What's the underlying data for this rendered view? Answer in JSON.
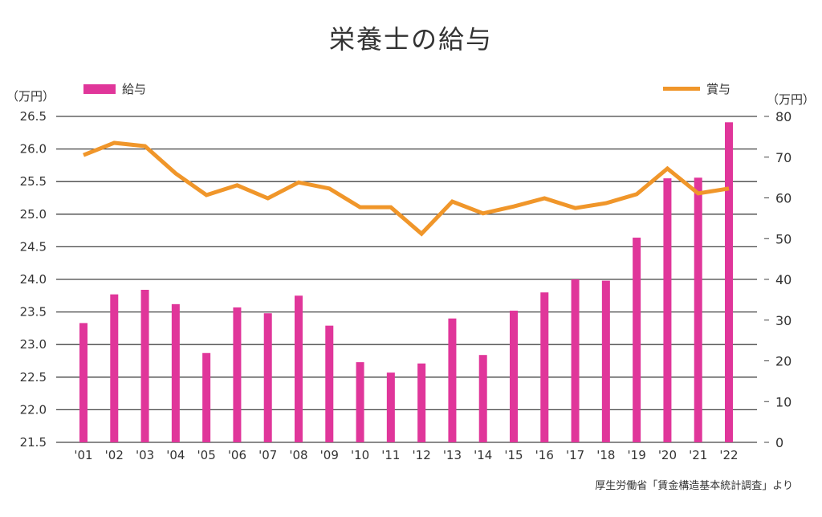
{
  "chart_data": {
    "type": "bar+line",
    "title": "栄養士の給与",
    "categories": [
      "'01",
      "'02",
      "'03",
      "'04",
      "'05",
      "'06",
      "'07",
      "'08",
      "'09",
      "'10",
      "'11",
      "'12",
      "'13",
      "'14",
      "'15",
      "'16",
      "'17",
      "'18",
      "'19",
      "'20",
      "'21",
      "'22"
    ],
    "series": [
      {
        "name": "給与",
        "type": "bar",
        "axis": "left",
        "color": "#e0369a",
        "values": [
          23.33,
          23.77,
          23.84,
          23.62,
          22.87,
          23.57,
          23.48,
          23.75,
          23.29,
          22.73,
          22.57,
          22.71,
          23.4,
          22.84,
          23.52,
          23.8,
          24.0,
          23.98,
          24.64,
          25.55,
          25.56,
          26.41
        ]
      },
      {
        "name": "賞与",
        "type": "line",
        "axis": "right",
        "color": "#f0962a",
        "values": [
          70.5,
          73.5,
          72.7,
          66.0,
          60.7,
          63.1,
          59.9,
          63.8,
          62.3,
          57.7,
          57.7,
          51.2,
          59.1,
          56.2,
          57.9,
          59.9,
          57.5,
          58.7,
          60.9,
          67.2,
          61.1,
          62.3
        ]
      }
    ],
    "left_axis": {
      "unit": "（万円）",
      "ylim": [
        21.5,
        26.5
      ],
      "ticks": [
        "21.5",
        "22.0",
        "22.5",
        "23.0",
        "23.5",
        "24.0",
        "24.5",
        "25.0",
        "25.5",
        "26.0",
        "26.5"
      ]
    },
    "right_axis": {
      "unit": "（万円）",
      "ylim": [
        0,
        80
      ],
      "ticks": [
        "0",
        "10",
        "20",
        "30",
        "40",
        "50",
        "60",
        "70",
        "80"
      ]
    },
    "grid": true,
    "legend": {
      "bar_label": "給与",
      "line_label": "賞与",
      "placement": "top"
    },
    "source": "厚生労働省「賃金構造基本統計調査」より"
  }
}
